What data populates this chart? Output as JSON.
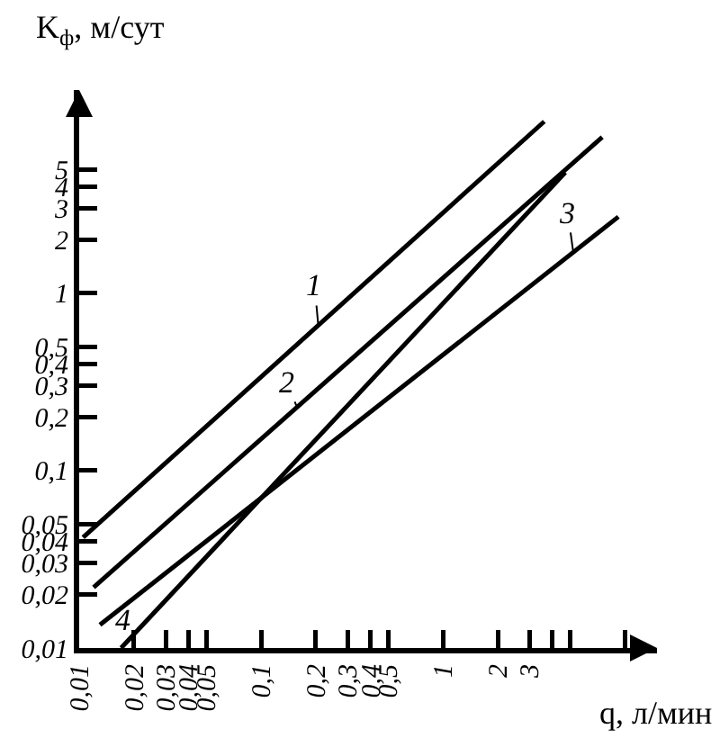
{
  "chart_data": {
    "type": "line",
    "xlabel": "q, л/мин",
    "ylabel": "K$_{ф}$, м/сут",
    "log": "xy",
    "legend": false,
    "grid": false,
    "marker": "none",
    "line_style": "solid",
    "xlim": [
      0.01,
      15
    ],
    "ylim": [
      0.01,
      14
    ],
    "xticks": [
      {
        "value": 0.01,
        "label": "0,01"
      },
      {
        "value": 0.02,
        "label": "0,02"
      },
      {
        "value": 0.03,
        "label": "0,03"
      },
      {
        "value": 0.04,
        "label": "0,04"
      },
      {
        "value": 0.05,
        "label": "0,05"
      },
      {
        "value": 0.1,
        "label": "0,1"
      },
      {
        "value": 0.2,
        "label": "0,2"
      },
      {
        "value": 0.3,
        "label": "0,3"
      },
      {
        "value": 0.4,
        "label": "0,4"
      },
      {
        "value": 0.5,
        "label": "0,5"
      },
      1,
      2,
      3,
      {
        "value": 4,
        "label": null
      },
      {
        "value": 5,
        "label": null
      },
      {
        "value": 10,
        "label": null
      }
    ],
    "yticks": [
      {
        "value": 0.01,
        "label": "0,01"
      },
      {
        "value": 0.02,
        "label": "0,02"
      },
      {
        "value": 0.03,
        "label": "0,03"
      },
      {
        "value": 0.04,
        "label": "0,04"
      },
      {
        "value": 0.05,
        "label": "0,05"
      },
      {
        "value": 0.1,
        "label": "0,1"
      },
      {
        "value": 0.2,
        "label": "0,2"
      },
      {
        "value": 0.3,
        "label": "0,3"
      },
      {
        "value": 0.4,
        "label": "0,4"
      },
      {
        "value": 0.5,
        "label": "0,5"
      },
      1,
      2,
      3,
      4,
      5
    ],
    "series": [
      {
        "name": "1",
        "color": "#000000",
        "x": [
          0.0105,
          3.6
        ],
        "values": [
          0.042,
          9.3
        ]
      },
      {
        "name": "2",
        "color": "#000000",
        "x": [
          0.012,
          7.5
        ],
        "values": [
          0.022,
          7.6
        ]
      },
      {
        "name": "3",
        "color": "#000000",
        "x": [
          0.013,
          9.2
        ],
        "values": [
          0.0135,
          2.7
        ]
      },
      {
        "name": "4",
        "color": "#000000",
        "x": [
          0.017,
          4.7
        ],
        "values": [
          0.01,
          4.8
        ]
      }
    ]
  }
}
